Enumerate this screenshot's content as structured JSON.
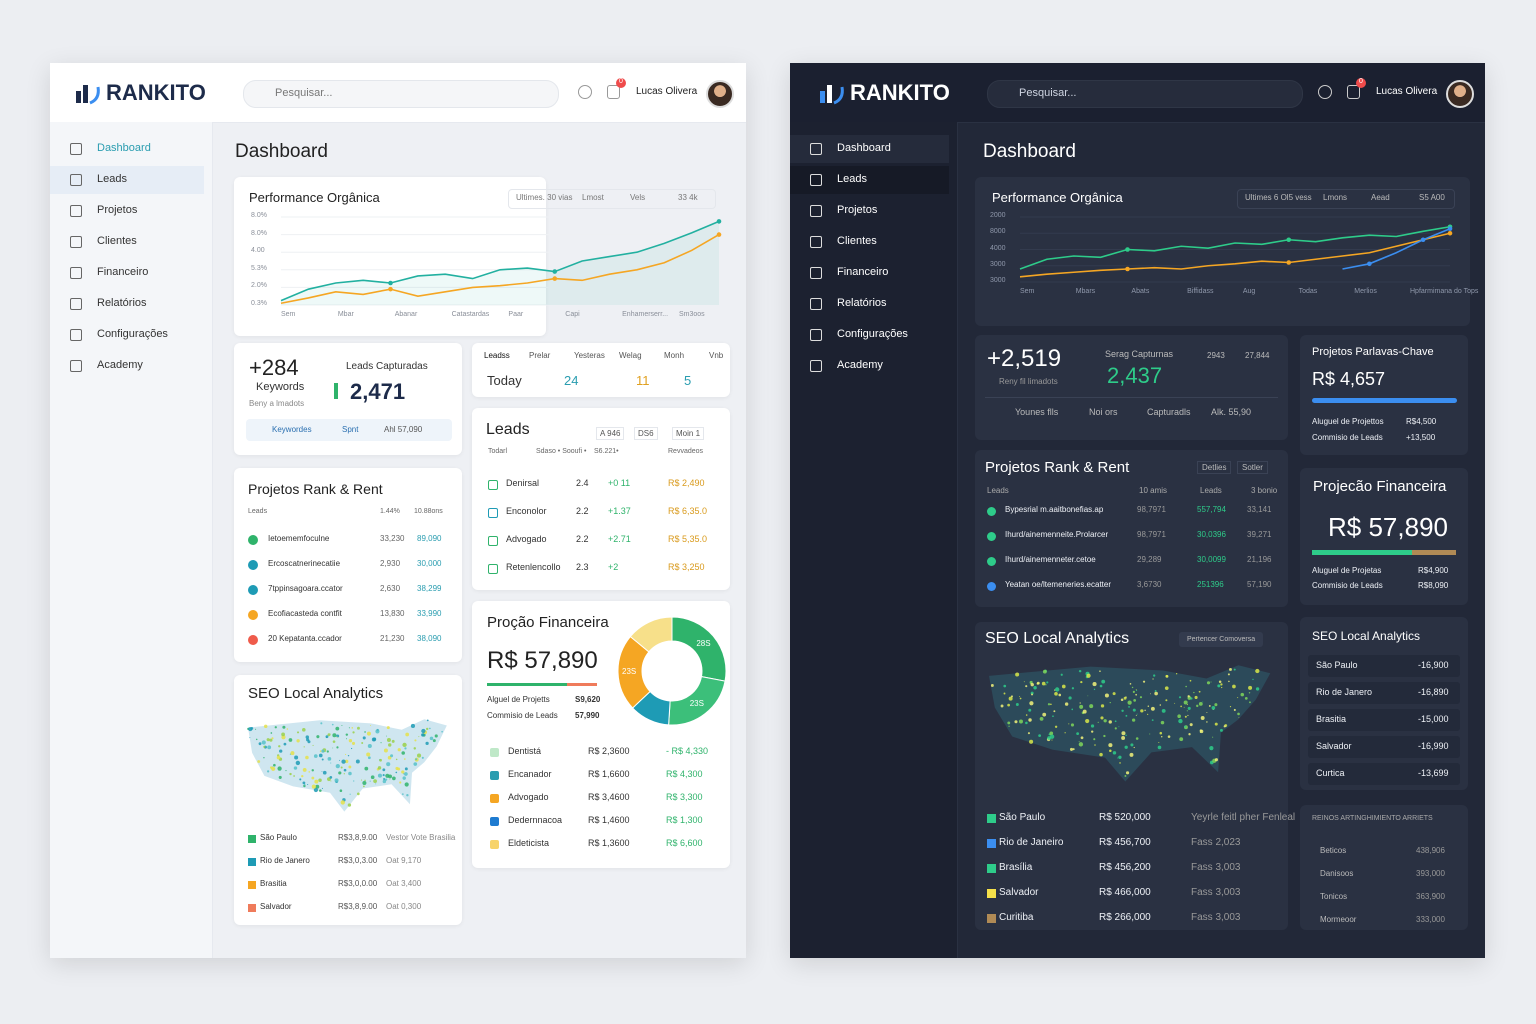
{
  "light": {
    "brand": "RANKITO",
    "search": "Pesquisar...",
    "user": "Lucas Olivera",
    "badge": "0",
    "nav": [
      "Dashboard",
      "Leads",
      "Projetos",
      "Clientes",
      "Financeiro",
      "Relatórios",
      "Configurações",
      "Academy"
    ],
    "page_title": "Dashboard",
    "performance": {
      "title": "Performance Orgânica",
      "filters": [
        "Ultimes. 30 vias",
        "Lmost",
        "Vels",
        "33 4k"
      ],
      "y_labels": [
        "8.0%",
        "8.0%",
        "4.00",
        "5.3%",
        "2.0%",
        "0.3%"
      ],
      "x_labels": [
        "Sem",
        "Mbar",
        "Abanar",
        "Catastardas",
        "Paar",
        "Capi",
        "Enhamerserr...",
        "Sm3oos"
      ],
      "ylim": [
        0,
        100
      ],
      "series": [
        {
          "color": "#22b0a0",
          "values": [
            5,
            18,
            25,
            28,
            25,
            33,
            35,
            30,
            40,
            42,
            38,
            50,
            55,
            60,
            70,
            82,
            95
          ]
        },
        {
          "color": "#f5a623",
          "values": [
            2,
            8,
            15,
            12,
            18,
            10,
            15,
            20,
            22,
            25,
            30,
            28,
            35,
            40,
            48,
            62,
            80
          ]
        }
      ]
    },
    "keywords": {
      "big": "+284",
      "big_label": "Keywords",
      "sub": "Beny a lmadots",
      "leads_label": "Leads Capturadas",
      "leads_value": "2,471",
      "tags": [
        "Keywordes",
        "Spnt",
        "Ahl 57,090"
      ]
    },
    "lead_tabs": {
      "tabs": [
        "Leadss",
        "Prelar",
        "Yesteras",
        "Welag",
        "Monh",
        "Vnb"
      ],
      "labels": [
        "Today",
        "24",
        "11",
        "5"
      ]
    },
    "leads": {
      "title": "Leads",
      "pills": [
        "A 946",
        "DS6",
        "Moin 1"
      ],
      "head": [
        "Todarl",
        "Sdaso • Sooufi •",
        "S6.221•",
        "Revvadeos"
      ],
      "rows": [
        [
          "Denirsal",
          "2.4",
          "+0 11",
          "R$ 2,490"
        ],
        [
          "Enconolor",
          "2.2",
          "+1.37",
          "R$ 6,35.0"
        ],
        [
          "Advogado",
          "2.2",
          "+2.71",
          "R$ 5,35.0"
        ],
        [
          "Retenlencollo",
          "2.3",
          "+2",
          "R$ 3,250"
        ]
      ]
    },
    "projetos": {
      "title": "Projetos Rank & Rent",
      "head": [
        "Leads",
        "1.44%",
        "10.88ons"
      ],
      "rows": [
        [
          "Ietoememfoculne",
          "33,230",
          "89,090"
        ],
        [
          "Ercoscatnerinecatiie",
          "2,930",
          "30,000"
        ],
        [
          "7tppinsagoara.ccator",
          "2,630",
          "38,299"
        ],
        [
          "Ecofiacasteda contfit",
          "13,830",
          "33,990"
        ],
        [
          "20 Kepatanta.ccador",
          "21,230",
          "38,090"
        ]
      ]
    },
    "financeira": {
      "title": "Proção Financeira",
      "value": "R$ 57,890",
      "rows": [
        [
          "Alguel de Projetts",
          "S9,620"
        ],
        [
          "Commisio de Leads",
          "57,990"
        ]
      ],
      "donut": {
        "values": [
          28,
          23,
          12,
          23,
          14
        ],
        "value_labels": [
          "28S",
          "23S",
          null,
          "23S",
          null
        ],
        "colors": [
          "#2fb36b",
          "#3cbf7a",
          "#1e9bb5",
          "#f5a623",
          "#f7e08a"
        ]
      },
      "table": [
        [
          "Dentistá",
          "R$ 2,3600",
          "- R$ 4,330"
        ],
        [
          "Encanador",
          "R$ 1,6600",
          "R$ 4,300"
        ],
        [
          "Advogado",
          "R$ 3,4600",
          "R$ 3,300"
        ],
        [
          "Dedernnacoa",
          "R$ 1,4600",
          "R$ 1,300"
        ],
        [
          "Eldeticista",
          "R$ 1,3600",
          "R$ 6,600"
        ]
      ]
    },
    "seo": {
      "title": "SEO Local Analytics",
      "rows": [
        [
          "São Paulo",
          "R$3,8,9.00",
          "Vestor Vote Brasilia"
        ],
        [
          "Rio de Janero",
          "R$3,0,3.00",
          "Oat 9,170"
        ],
        [
          "Brasitia",
          "R$3,0,0.00",
          "Oat 3,400"
        ],
        [
          "Salvador",
          "R$3,8,9.00",
          "Oat 0,300"
        ]
      ]
    }
  },
  "dark": {
    "brand": "RANKITO",
    "search": "Pesquisar...",
    "user": "Lucas Olivera",
    "badge": "0",
    "nav": [
      "Dashboard",
      "Leads",
      "Projetos",
      "Clientes",
      "Financeiro",
      "Relatórios",
      "Configurações",
      "Academy"
    ],
    "page_title": "Dashboard",
    "performance": {
      "title": "Performance Orgânica",
      "filters": [
        "Ultimes 6 Ol5 vess",
        "Lmons",
        "Aead",
        "S5 A00"
      ],
      "y_labels": [
        "2000",
        "8000",
        "4000",
        "3000",
        "3000"
      ],
      "x_labels": [
        "Sem",
        "Mbars",
        "Abats",
        "Biffidass",
        "Aug",
        "Todas",
        "Merlios",
        "Hpfarmimana do Tops"
      ],
      "ylim": [
        0,
        100
      ],
      "series": [
        {
          "color": "#2ecc8a",
          "values": [
            20,
            35,
            40,
            38,
            50,
            48,
            55,
            52,
            60,
            58,
            65,
            62,
            68,
            72,
            70,
            78,
            85
          ]
        },
        {
          "color": "#f5a623",
          "values": [
            8,
            12,
            15,
            18,
            20,
            22,
            20,
            25,
            28,
            32,
            30,
            35,
            40,
            45,
            55,
            65,
            75
          ]
        },
        {
          "color": "#3b8ef0",
          "values": [
            null,
            null,
            null,
            null,
            null,
            null,
            null,
            null,
            null,
            null,
            null,
            null,
            20,
            28,
            45,
            65,
            82
          ]
        }
      ]
    },
    "keywords": {
      "big": "+2,519",
      "sub": "Reny fil limadots",
      "leads_label": "Serag Capturnas",
      "leads_value": "2,437",
      "stats": [
        "2943",
        "27,844"
      ],
      "tags": [
        "Younes flls",
        "Noi ors",
        "Capturadls",
        "Alk. 55,90"
      ]
    },
    "palavras": {
      "title": "Projetos Parlavas-Chave",
      "value": "R$ 4,657",
      "rows": [
        [
          "Aluguel de Projettos",
          "R$4,500"
        ],
        [
          "Commisio de Leads",
          "+13,500"
        ]
      ]
    },
    "projetos": {
      "title": "Projetos Rank & Rent",
      "pills": [
        "Detlies",
        "Sotler"
      ],
      "head": [
        "Leads",
        "10 amis",
        "Leads",
        "3 bonio"
      ],
      "rows": [
        [
          "Bypesrial m.aaitbonefias.ap",
          "98,7971",
          "557,794",
          "33,141"
        ],
        [
          "Ihurd/ainemenneite.Prolarcer",
          "98,7971",
          "30,0396",
          "39,271"
        ],
        [
          "Ihurd/ainemenneter.cetoe",
          "29,289",
          "30,0099",
          "21,196"
        ],
        [
          "Yeatan oe/ltemeneries.ecatter",
          "3,6730",
          "251396",
          "57,190"
        ]
      ]
    },
    "financeira": {
      "title": "Projecão Financeira",
      "value": "R$ 57,890",
      "rows": [
        [
          "Aluguel de Projetas",
          "R$4,900"
        ],
        [
          "Commisio de Leads",
          "R$8,090"
        ]
      ]
    },
    "seo_map": {
      "title": "SEO Local Analytics",
      "button": "Pertencer Comoversa",
      "rows": [
        [
          "São Paulo",
          "R$ 520,000",
          "Yeyrle feitl pher Fenleal"
        ],
        [
          "Rio de Janeiro",
          "R$ 456,700",
          "Fass 2,023"
        ],
        [
          "Brasília",
          "R$ 456,200",
          "Fass 3,003"
        ],
        [
          "Salvador",
          "R$ 466,000",
          "Fass 3,003"
        ],
        [
          "Curitiba",
          "R$ 266,000",
          "Fass 3,003"
        ]
      ]
    },
    "seo_list": {
      "title": "SEO Local Analytics",
      "rows": [
        [
          "São Paulo",
          "-16,900"
        ],
        [
          "Rio de Janero",
          "-16,890"
        ],
        [
          "Brasitia",
          "-15,000"
        ],
        [
          "Salvador",
          "-16,990"
        ],
        [
          "Curtica",
          "-13,699"
        ]
      ]
    },
    "ranking": {
      "title": "REINOS ARTINGHIMIENTO ARRIETS",
      "rows": [
        [
          "Beticos",
          "438,906"
        ],
        [
          "Danisoos",
          "393,000"
        ],
        [
          "Tonicos",
          "363,900"
        ],
        [
          "Mormeoor",
          "333,000"
        ]
      ]
    }
  }
}
